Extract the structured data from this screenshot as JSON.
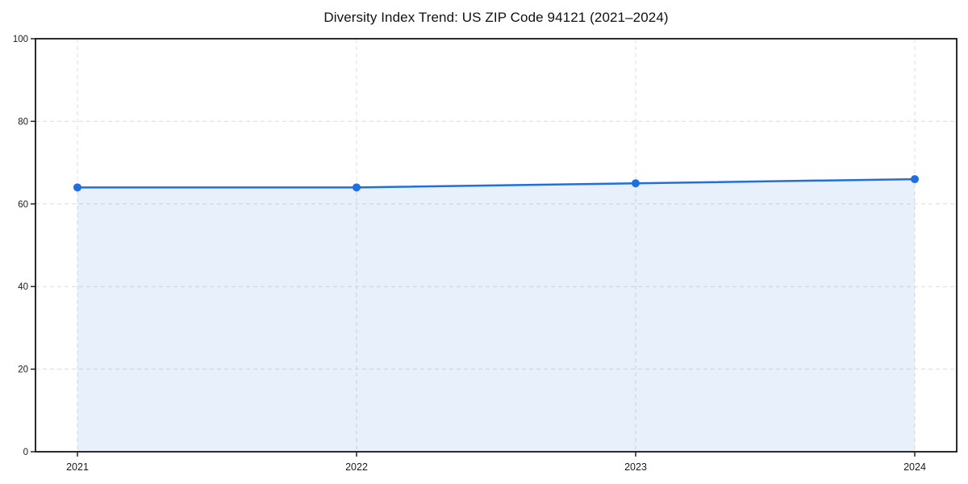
{
  "chart_data": {
    "type": "area",
    "title": "Diversity Index Trend: US ZIP Code 94121 (2021–2024)",
    "categories": [
      "2021",
      "2022",
      "2023",
      "2024"
    ],
    "values": [
      64,
      64,
      65,
      66
    ],
    "series": [
      {
        "name": "Diversity Index",
        "values": [
          64,
          64,
          65,
          66
        ]
      }
    ],
    "xlabel": "",
    "ylabel": "",
    "ylim": [
      0,
      100
    ],
    "yticks": [
      0,
      20,
      40,
      60,
      80,
      100
    ],
    "grid": true,
    "grid_style": "dashed",
    "legend_position": "none",
    "marker": "circle",
    "colors": {
      "line": "#1f6fe0",
      "marker": "#1f6fe0",
      "fill": "rgba(31, 111, 224, 0.10)",
      "grid": "#dcdcdc",
      "frame": "#141414",
      "tick_label": "#1a1a1a",
      "title": "#111111"
    }
  }
}
